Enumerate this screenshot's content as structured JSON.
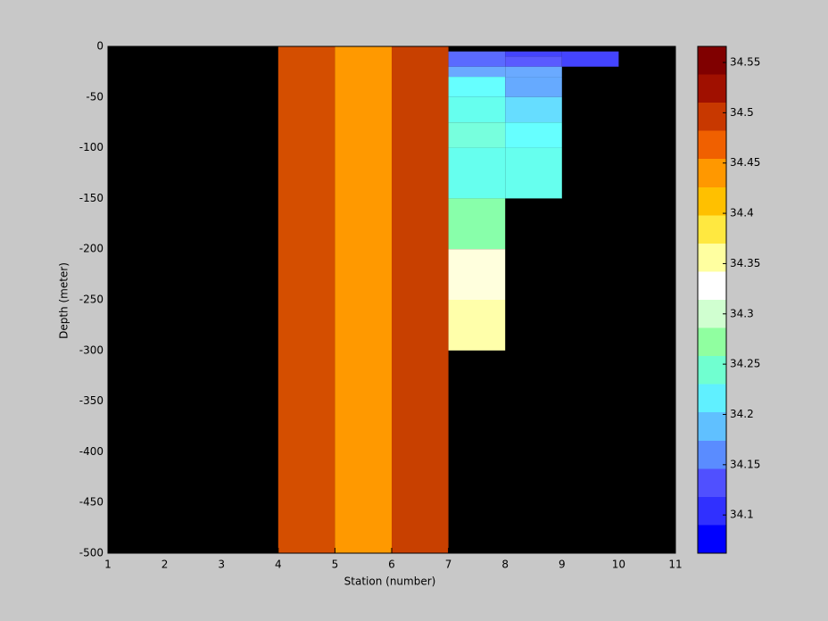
{
  "chart_data": {
    "type": "heatmap",
    "xlabel": "Station (number)",
    "ylabel": "Depth (meter)",
    "xlim": [
      1,
      11
    ],
    "xticks": [
      1,
      2,
      3,
      4,
      5,
      6,
      7,
      8,
      9,
      10,
      11
    ],
    "ylim": [
      -500,
      0
    ],
    "yticks": [
      0,
      -50,
      -100,
      -150,
      -200,
      -250,
      -300,
      -350,
      -400,
      -450,
      -500
    ],
    "background": "#000000",
    "clim": [
      34.062,
      34.566
    ],
    "cticks": [
      34.1,
      34.15,
      34.2,
      34.25,
      34.3,
      34.35,
      34.4,
      34.45,
      34.5,
      34.55
    ],
    "colormap": [
      "#0000ff",
      "#3030ff",
      "#5050ff",
      "#5a8cff",
      "#60c0ff",
      "#60f0ff",
      "#70ffd0",
      "#90ffa0",
      "#d0ffd0",
      "#ffffff",
      "#ffffa0",
      "#ffe840",
      "#ffc000",
      "#ff9800",
      "#f06000",
      "#c83800",
      "#a01000",
      "#800000"
    ],
    "cells": [
      {
        "x": [
          4,
          5
        ],
        "y": [
          -500,
          0
        ],
        "value": 34.52,
        "color": "#d44e00"
      },
      {
        "x": [
          5,
          6
        ],
        "y": [
          -500,
          0
        ],
        "value": 34.49,
        "color": "#ff9900"
      },
      {
        "x": [
          6,
          7
        ],
        "y": [
          -500,
          0
        ],
        "value": 34.53,
        "color": "#c84000"
      },
      {
        "x": [
          7,
          8
        ],
        "y": [
          -20,
          -5
        ],
        "value": 34.13,
        "color": "#5a6aff"
      },
      {
        "x": [
          7,
          8
        ],
        "y": [
          -30,
          -20
        ],
        "value": 34.16,
        "color": "#6aaaff"
      },
      {
        "x": [
          7,
          8
        ],
        "y": [
          -50,
          -30
        ],
        "value": 34.19,
        "color": "#66ffff"
      },
      {
        "x": [
          7,
          8
        ],
        "y": [
          -75,
          -50
        ],
        "value": 34.2,
        "color": "#66ffee"
      },
      {
        "x": [
          7,
          8
        ],
        "y": [
          -100,
          -75
        ],
        "value": 34.21,
        "color": "#77ffdd"
      },
      {
        "x": [
          7,
          8
        ],
        "y": [
          -150,
          -100
        ],
        "value": 34.2,
        "color": "#66ffee"
      },
      {
        "x": [
          7,
          8
        ],
        "y": [
          -200,
          -150
        ],
        "value": 34.25,
        "color": "#88ffaa"
      },
      {
        "x": [
          7,
          8
        ],
        "y": [
          -250,
          -200
        ],
        "value": 34.32,
        "color": "#ffffdd"
      },
      {
        "x": [
          7,
          8
        ],
        "y": [
          -300,
          -250
        ],
        "value": 34.35,
        "color": "#ffffaa"
      },
      {
        "x": [
          8,
          9
        ],
        "y": [
          -10,
          -5
        ],
        "value": 34.1,
        "color": "#4444ff"
      },
      {
        "x": [
          8,
          9
        ],
        "y": [
          -20,
          -10
        ],
        "value": 34.12,
        "color": "#5a5aff"
      },
      {
        "x": [
          8,
          9
        ],
        "y": [
          -30,
          -20
        ],
        "value": 34.16,
        "color": "#6aaaff"
      },
      {
        "x": [
          8,
          9
        ],
        "y": [
          -50,
          -30
        ],
        "value": 34.16,
        "color": "#66aaff"
      },
      {
        "x": [
          8,
          9
        ],
        "y": [
          -75,
          -50
        ],
        "value": 34.18,
        "color": "#66ddff"
      },
      {
        "x": [
          8,
          9
        ],
        "y": [
          -100,
          -75
        ],
        "value": 34.19,
        "color": "#66ffff"
      },
      {
        "x": [
          8,
          9
        ],
        "y": [
          -150,
          -100
        ],
        "value": 34.2,
        "color": "#66ffee"
      },
      {
        "x": [
          9,
          10
        ],
        "y": [
          -20,
          -5
        ],
        "value": 34.1,
        "color": "#4444ff"
      }
    ]
  }
}
